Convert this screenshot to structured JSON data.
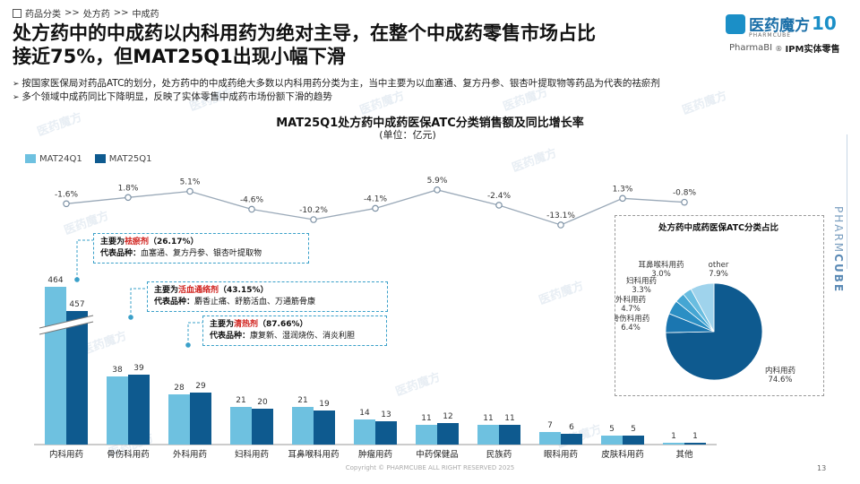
{
  "breadcrumb": {
    "items": [
      "药品分类",
      ">>",
      "处方药",
      ">>",
      "中成药"
    ]
  },
  "header": {
    "title_line1": "处方药中的中成药以内科用药为绝对主导，在整个中成药零售市场占比",
    "title_line2": "接近75%，但MAT25Q1出现小幅下滑",
    "bullets": [
      "按国家医保局对药品ATC的划分，处方药中的中成药绝大多数以内科用药分类为主，当中主要为以血塞通、复方丹参、银杏叶提取物等药品为代表的祛瘀剂",
      "多个领域中成药同比下降明显，反映了实体零售中成药市场份额下滑的趋势"
    ]
  },
  "brand": {
    "logo_text": "医药魔方",
    "logo_sub": "PHARMCUBE",
    "anniv": "10",
    "product_prefix": "PharmaBI",
    "product_reg": "®",
    "product_suffix": "IPM实体零售",
    "side_text_a": "PHARM",
    "side_text_b": "CUBE",
    "watermark": "医药魔方"
  },
  "colors": {
    "mat24": "#6ec1e0",
    "mat25": "#0e5a8f",
    "accent": "#3aa0c9",
    "highlight": "#d0211c"
  },
  "callouts": [
    {
      "lead": "主要为",
      "name": "祛瘀剂",
      "pct": "（26.17%）",
      "rep_label": "代表品种：",
      "rep": "血塞通、复方丹参、银杏叶提取物"
    },
    {
      "lead": "主要为",
      "name": "活血通络剂",
      "pct": "（43.15%）",
      "rep_label": "代表品种：",
      "rep": "麝香止痛、舒筋活血、万通筋骨康"
    },
    {
      "lead": "主要为",
      "name": "清热剂",
      "pct": "（87.66%）",
      "rep_label": "代表品种：",
      "rep": "康复新、湿润烧伤、消炎利胆"
    }
  ],
  "chart_data": [
    {
      "type": "bar",
      "title": "MAT25Q1处方药中成药医保ATC分类销售额及同比增长率",
      "subtitle": "(单位：亿元)",
      "categories": [
        "内科用药",
        "骨伤科用药",
        "外科用药",
        "妇科用药",
        "耳鼻喉科用药",
        "肿瘤用药",
        "中药保健品",
        "民族药",
        "眼科用药",
        "皮肤科用药",
        "其他"
      ],
      "series": [
        {
          "name": "MAT24Q1",
          "values": [
            464,
            38,
            28,
            21,
            21,
            14,
            11,
            11,
            7,
            5,
            1
          ]
        },
        {
          "name": "MAT25Q1",
          "values": [
            457,
            39,
            29,
            20,
            19,
            13,
            12,
            11,
            6,
            5,
            1
          ]
        }
      ],
      "growth": {
        "values": [
          -1.6,
          1.8,
          5.1,
          -4.6,
          -10.2,
          -4.1,
          5.9,
          -2.4,
          -13.1,
          1.3,
          -0.8
        ],
        "labels": [
          "-1.6%",
          "1.8%",
          "5.1%",
          "-4.6%",
          "-10.2%",
          "-4.1%",
          "5.9%",
          "-2.4%",
          "-13.1%",
          "1.3%",
          "-0.8%"
        ]
      },
      "legend": "top-left",
      "axis_break": true
    },
    {
      "type": "pie",
      "title": "处方药中成药医保ATC分类占比",
      "slices": [
        {
          "label": "内科用药",
          "value": 74.6,
          "text": "74.6%"
        },
        {
          "label": "骨伤科用药",
          "value": 6.4,
          "text": "6.4%"
        },
        {
          "label": "外科用药",
          "value": 4.7,
          "text": "4.7%"
        },
        {
          "label": "妇科用药",
          "value": 3.3,
          "text": "3.3%"
        },
        {
          "label": "耳鼻喉科用药",
          "value": 3.0,
          "text": "3.0%"
        },
        {
          "label": "other",
          "value": 7.9,
          "text": "7.9%"
        }
      ],
      "slice_colors": [
        "#0e5a8f",
        "#1b76b0",
        "#2b8fc4",
        "#45a6d3",
        "#69bde0",
        "#9fd3ec"
      ]
    }
  ],
  "footer": {
    "copyright": "Copyright © PHARMCUBE ALL RIGHT RESERVED 2025",
    "page": "13"
  }
}
